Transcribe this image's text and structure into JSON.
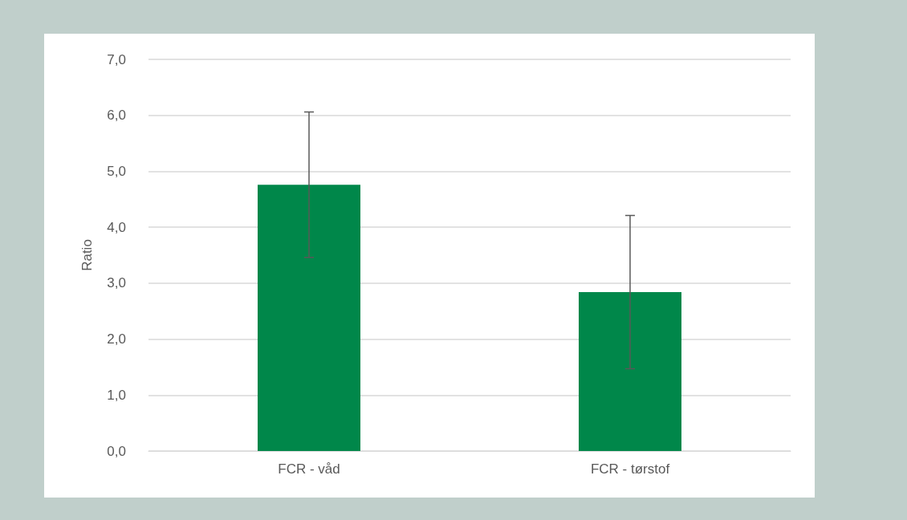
{
  "chart_data": {
    "type": "bar",
    "ylabel": "Ratio",
    "categories": [
      "FCR - våd",
      "FCR - tørstof"
    ],
    "values": [
      4.76,
      2.84
    ],
    "errors": [
      1.3,
      1.37
    ],
    "color": "#00874a",
    "ylim": [
      0,
      7
    ],
    "yticks": [
      {
        "value": 0,
        "label": "0,0"
      },
      {
        "value": 1,
        "label": "1,0"
      },
      {
        "value": 2,
        "label": "2,0"
      },
      {
        "value": 3,
        "label": "3,0"
      },
      {
        "value": 4,
        "label": "4,0"
      },
      {
        "value": 5,
        "label": "5,0"
      },
      {
        "value": 6,
        "label": "6,0"
      },
      {
        "value": 7,
        "label": "7,0"
      }
    ],
    "grid": "y"
  }
}
